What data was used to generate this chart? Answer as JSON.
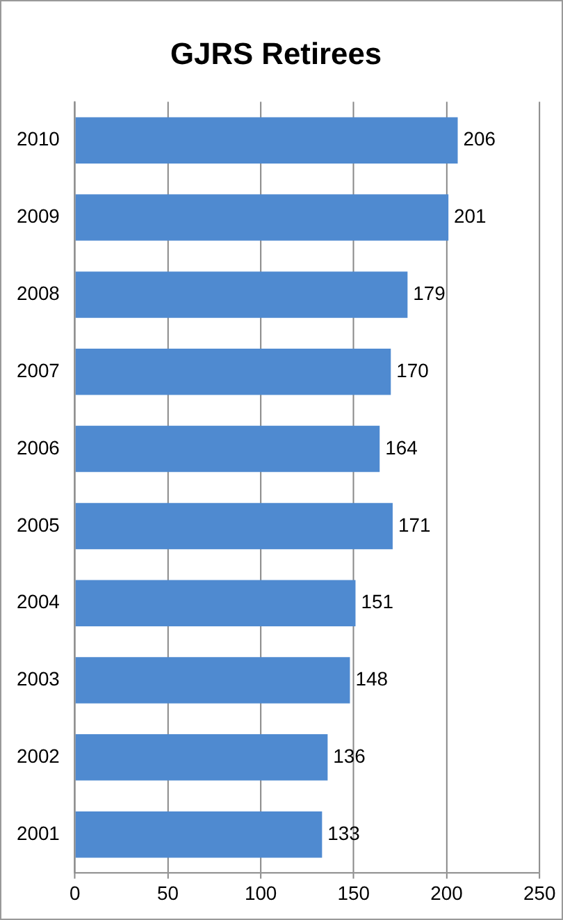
{
  "chart_data": {
    "type": "bar",
    "title": "GJRS Retirees",
    "orientation": "horizontal",
    "categories": [
      "2010",
      "2009",
      "2008",
      "2007",
      "2006",
      "2005",
      "2004",
      "2003",
      "2002",
      "2001"
    ],
    "values": [
      206,
      201,
      179,
      170,
      164,
      171,
      151,
      148,
      136,
      133
    ],
    "color": "#4f8ad0",
    "xlim": [
      0,
      250
    ],
    "xticks": [
      0,
      50,
      100,
      150,
      200,
      250
    ],
    "grid": "x",
    "data_labels": true,
    "legend": false
  }
}
